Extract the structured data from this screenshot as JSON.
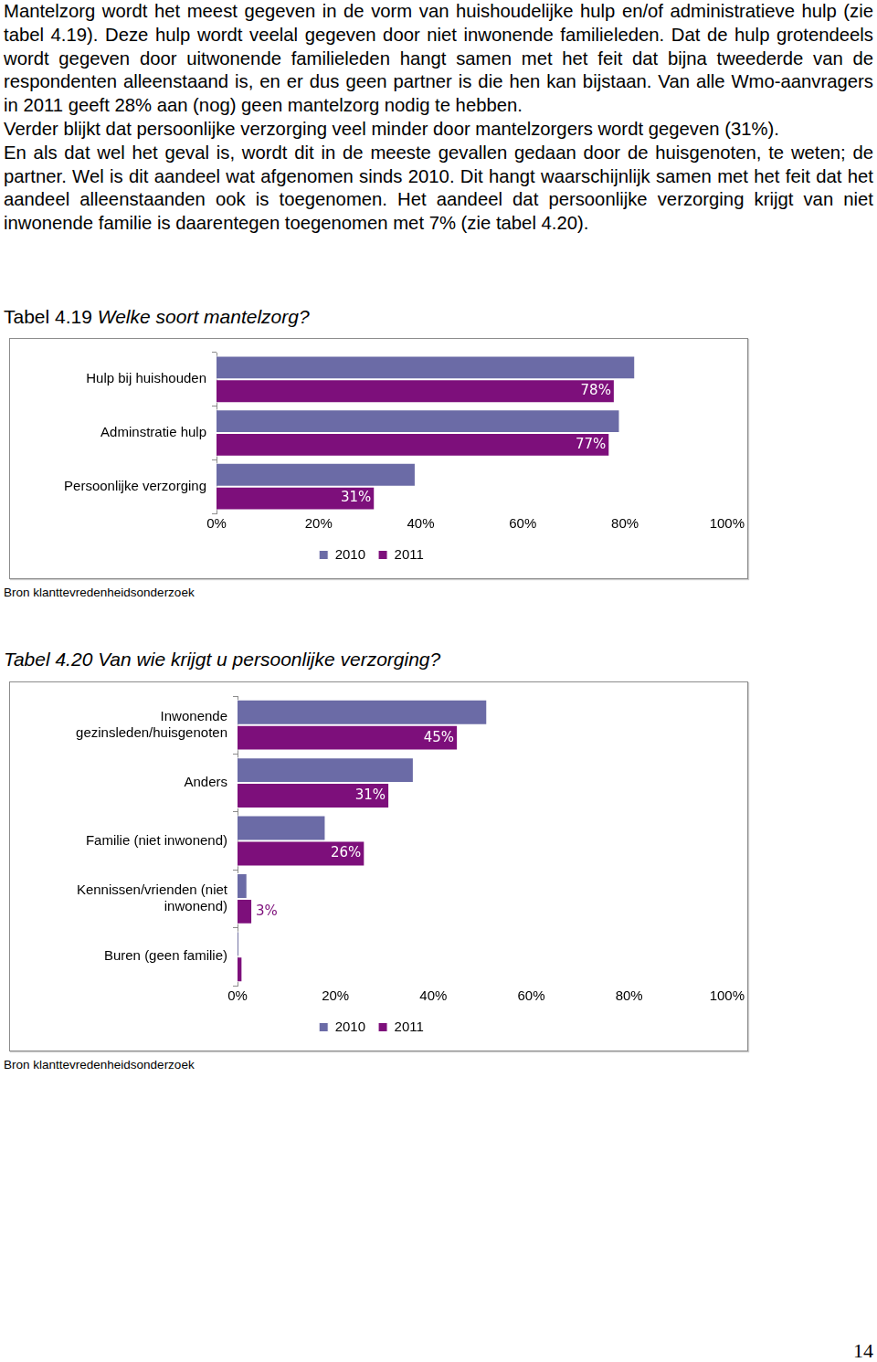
{
  "document": {
    "paragraphs": [
      "Mantelzorg wordt het meest gegeven in de vorm van huishoudelijke hulp en/of administratieve hulp (zie tabel 4.19). Deze hulp wordt veelal gegeven door niet inwonende familieleden. Dat de hulp grotendeels wordt gegeven door uitwonende familieleden hangt samen met het feit dat bijna tweederde van de respondenten alleenstaand is, en er dus geen partner is die hen kan bijstaan. Van alle Wmo-aanvragers in 2011 geeft 28% aan (nog) geen mantelzorg nodig te hebben.",
      "Verder blijkt dat persoonlijke verzorging veel minder door mantelzorgers wordt gegeven (31%).",
      "En als dat wel het geval is, wordt dit in de meeste gevallen gedaan door de huisgenoten, te weten; de partner. Wel is dit aandeel wat afgenomen sinds 2010. Dit hangt waarschijnlijk samen met het feit dat het aandeel alleenstaanden ook is toegenomen. Het aandeel dat persoonlijke verzorging krijgt van niet inwonende familie is daarentegen toegenomen met 7% (zie tabel 4.20)."
    ],
    "page_number": 14
  },
  "chart_data": [
    {
      "type": "bar",
      "orientation": "horizontal",
      "title": "Tabel 4.19 Welke soort mantelzorg?",
      "categories": [
        "Hulp bij huishouden",
        "Adminstratie hulp",
        "Persoonlijke verzorging"
      ],
      "series": [
        {
          "name": "2010",
          "color": "#6b6ba6",
          "values": [
            82,
            79,
            39
          ]
        },
        {
          "name": "2011",
          "color": "#7d0f7b",
          "values": [
            78,
            77,
            31
          ],
          "value_labels": [
            "78%",
            "77%",
            "31%"
          ]
        }
      ],
      "xlim": [
        0,
        100
      ],
      "xticks": [
        {
          "value": 0,
          "label": "0%"
        },
        {
          "value": 20,
          "label": "20%"
        },
        {
          "value": 40,
          "label": "40%"
        },
        {
          "value": 60,
          "label": "60%"
        },
        {
          "value": 80,
          "label": "80%"
        },
        {
          "value": 100,
          "label": "100%"
        }
      ],
      "grid": false,
      "legend": "bottom",
      "data_labels": true,
      "source": "Bron klanttevredenheidsonderzoek"
    },
    {
      "type": "bar",
      "orientation": "horizontal",
      "title": "Tabel 4.20 Van wie krijgt u persoonlijke verzorging?",
      "categories": [
        "Inwonende gezinsleden/huisgenoten",
        "Anders",
        "Familie (niet inwonend)",
        "Kennissen/vrienden (niet inwonend)",
        "Buren (geen familie)"
      ],
      "series": [
        {
          "name": "2010",
          "color": "#6b6ba6",
          "values": [
            51,
            36,
            18,
            2,
            0.3
          ]
        },
        {
          "name": "2011",
          "color": "#7d0f7b",
          "values": [
            45,
            31,
            26,
            3,
            1
          ],
          "value_labels": [
            "45%",
            "31%",
            "26%",
            "3%",
            null
          ]
        }
      ],
      "xlim": [
        0,
        100
      ],
      "xticks": [
        {
          "value": 0,
          "label": "0%"
        },
        {
          "value": 20,
          "label": "20%"
        },
        {
          "value": 40,
          "label": "40%"
        },
        {
          "value": 60,
          "label": "60%"
        },
        {
          "value": 80,
          "label": "80%"
        },
        {
          "value": 100,
          "label": "100%"
        }
      ],
      "grid": false,
      "legend": "bottom",
      "data_labels": true,
      "source": "Bron klanttevredenheidsonderzoek"
    }
  ]
}
